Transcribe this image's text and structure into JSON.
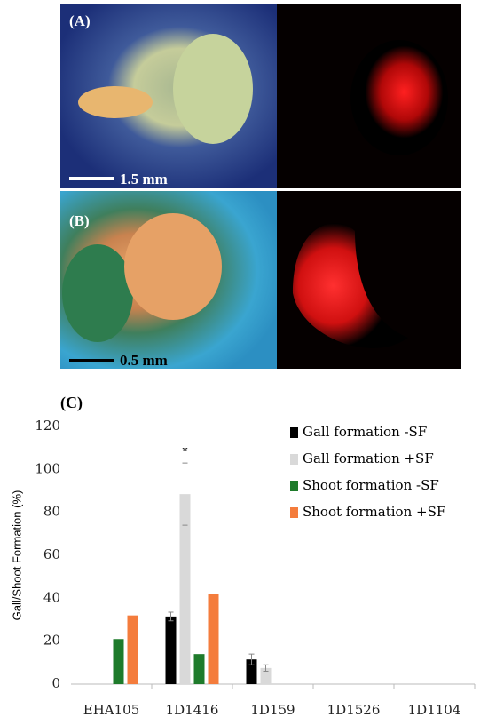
{
  "panels": {
    "a_label": "(A)",
    "a_scale": "1.5 mm",
    "b_label": "(B)",
    "b_scale": "0.5 mm"
  },
  "chart_data": {
    "type": "bar",
    "panel_label": "(C)",
    "y_label": "Gall/Shoot  Formation (%)",
    "categories": [
      "EHA105",
      "1D1416",
      "1D159",
      "1D1526",
      "1D1104"
    ],
    "series": [
      {
        "name": "Gall formation -SF",
        "color": "#000000",
        "values": [
          0,
          31.5,
          11.5,
          0,
          0
        ],
        "errors": [
          null,
          2,
          2.5,
          null,
          null
        ]
      },
      {
        "name": "Gall formation +SF",
        "color": "#d9d9d9",
        "values": [
          0,
          88.5,
          7.5,
          0,
          0
        ],
        "errors": [
          null,
          14.5,
          1.5,
          null,
          null
        ]
      },
      {
        "name": "Shoot formation -SF",
        "color": "#1e7b2b",
        "values": [
          21,
          14,
          0,
          0,
          0
        ]
      },
      {
        "name": "Shoot formation +SF",
        "color": "#f47c3c",
        "values": [
          32,
          42,
          0,
          0,
          0
        ]
      }
    ],
    "annotations": [
      "*"
    ],
    "ylim": [
      0,
      120
    ],
    "yticks": [
      0,
      20,
      40,
      60,
      80,
      100,
      120
    ],
    "legend": "upper right"
  }
}
